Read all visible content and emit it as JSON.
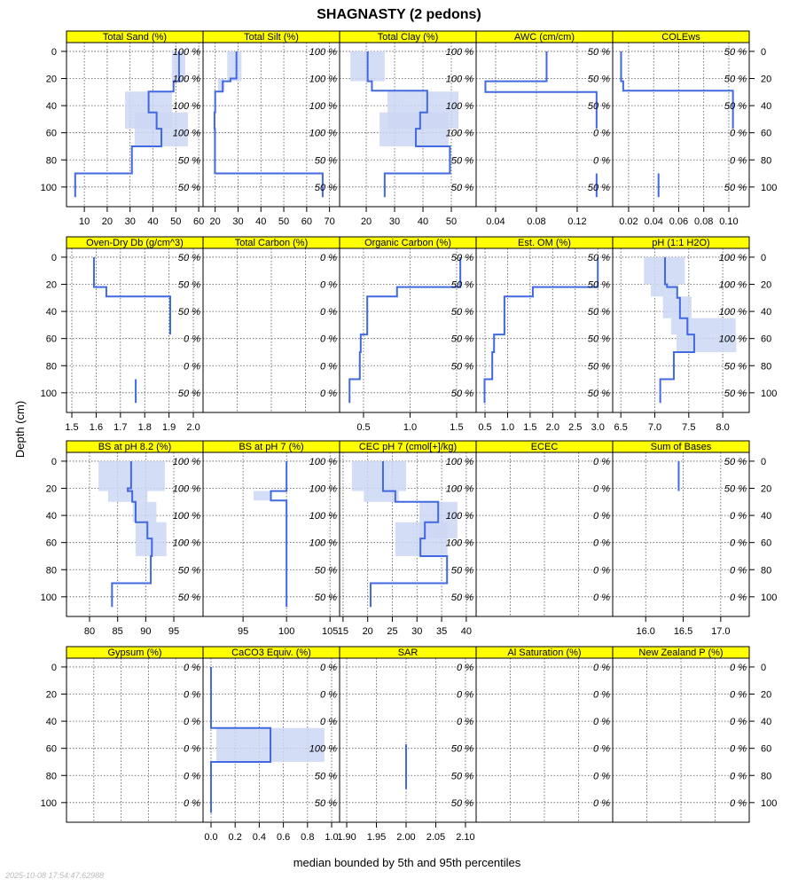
{
  "title": "SHAGNASTY (2 pedons)",
  "xlabel": "median bounded by 5th and 95th percentiles",
  "ylabel": "Depth (cm)",
  "timestamp": "2025-10-08 17:54:47.62988",
  "colors": {
    "strip": "#ffff00",
    "median": "#4169e1",
    "band": "#cdd7f5",
    "grid": "#555555"
  },
  "chart_data": {
    "type": "line",
    "title": "SHAGNASTY (2 pedons)",
    "xlabel": "median bounded by 5th and 95th percentiles",
    "ylabel": "Depth (cm)",
    "ylim": [
      -6.5,
      114.5
    ],
    "depth_ticks": [
      "0",
      "20",
      "40",
      "60",
      "80",
      "100"
    ],
    "depth_tick_values": [
      0,
      20,
      40,
      60,
      80,
      100
    ],
    "panels": [
      {
        "title": "Total Sand (%)",
        "xlim": [
          2.2,
          61.9
        ],
        "ticks": [
          10,
          20,
          30,
          40,
          50,
          60
        ],
        "tick_labels": [
          "10",
          "20",
          "30",
          "40",
          "50",
          "60"
        ],
        "median": [
          [
            0,
            22,
            51.4
          ],
          [
            22,
            29.6,
            49
          ],
          [
            29.6,
            45,
            38.1
          ],
          [
            45,
            57,
            41.6
          ],
          [
            57,
            70,
            43.7
          ],
          [
            70,
            90,
            30.8
          ],
          [
            90,
            107.5,
            6
          ]
        ],
        "bands": [
          [
            0,
            22,
            48.3,
            54.1
          ],
          [
            29.6,
            57,
            27.8,
            48.3
          ],
          [
            45,
            70,
            32,
            55.3
          ]
        ],
        "pct": [
          "100 %",
          "100 %",
          "100 %",
          "100 %",
          "50 %",
          "50 %"
        ]
      },
      {
        "title": "Total Silt (%)",
        "xlim": [
          14.7,
          74.4
        ],
        "ticks": [
          20,
          30,
          40,
          50,
          60,
          70
        ],
        "tick_labels": [
          "20",
          "30",
          "40",
          "50",
          "60",
          "70"
        ],
        "median": [
          [
            0,
            20,
            29.3
          ],
          [
            20,
            22,
            26.7
          ],
          [
            22,
            29.6,
            23.3
          ],
          [
            29.6,
            45,
            20
          ],
          [
            45,
            57,
            19.7
          ],
          [
            57,
            90,
            19.9
          ],
          [
            90,
            107.5,
            67
          ]
        ],
        "bands": [
          [
            0,
            22,
            25.3,
            31.5
          ],
          [
            20,
            29.6,
            21.2,
            24.1
          ]
        ],
        "pct": [
          "100 %",
          "100 %",
          "100 %",
          "100 %",
          "50 %",
          "50 %"
        ]
      },
      {
        "title": "Total Clay (%)",
        "xlim": [
          10.6,
          58.75
        ],
        "ticks": [
          20,
          30,
          40,
          50
        ],
        "tick_labels": [
          "20",
          "30",
          "40",
          "50"
        ],
        "median": [
          [
            0,
            22,
            20.5
          ],
          [
            22,
            29,
            22
          ],
          [
            29,
            45,
            41.5
          ],
          [
            45,
            57,
            39
          ],
          [
            57,
            70,
            37.5
          ],
          [
            70,
            90,
            49.5
          ],
          [
            90,
            107.5,
            26.5
          ]
        ],
        "bands": [
          [
            0,
            22,
            14.4,
            26.5
          ],
          [
            29.6,
            57,
            27.5,
            52.5
          ],
          [
            45,
            70,
            24.7,
            49
          ]
        ],
        "pct": [
          "100 %",
          "100 %",
          "100 %",
          "100 %",
          "50 %",
          "50 %"
        ]
      },
      {
        "title": "AWC (cm/cm)",
        "xlim": [
          0.0209,
          0.1548
        ],
        "ticks": [
          0.04,
          0.08,
          0.12
        ],
        "tick_labels": [
          "0.04",
          "0.08",
          "0.12"
        ],
        "median": [
          [
            0,
            22,
            0.09
          ],
          [
            22,
            30,
            0.03
          ],
          [
            30,
            57,
            0.139
          ],
          [
            90,
            107.5,
            0.139
          ]
        ],
        "bands": [],
        "pct": [
          "50 %",
          "50 %",
          "50 %",
          "0 %",
          "0 %",
          "50 %"
        ]
      },
      {
        "title": "COLEws",
        "xlim": [
          0.0073,
          0.1163
        ],
        "ticks": [
          0.02,
          0.04,
          0.06,
          0.08,
          0.1
        ],
        "tick_labels": [
          "0.02",
          "0.04",
          "0.06",
          "0.08",
          "0.10"
        ],
        "median": [
          [
            0,
            22,
            0.014
          ],
          [
            22,
            29,
            0.0157
          ],
          [
            29,
            57,
            0.1033
          ],
          [
            90,
            107.5,
            0.0439
          ]
        ],
        "bands": [],
        "pct": [
          "50 %",
          "50 %",
          "50 %",
          "0 %",
          "0 %",
          "50 %"
        ]
      },
      {
        "title": "Oven-Dry Db (g/cm^3)",
        "xlim": [
          1.478,
          2.04
        ],
        "ticks": [
          1.5,
          1.6,
          1.7,
          1.8,
          1.9,
          2.0
        ],
        "tick_labels": [
          "1.5",
          "1.6",
          "1.7",
          "1.8",
          "1.9",
          "2.0"
        ],
        "median": [
          [
            0,
            22,
            1.591
          ],
          [
            22,
            29,
            1.642
          ],
          [
            29,
            57,
            1.905
          ],
          [
            90,
            107.5,
            1.763
          ]
        ],
        "bands": [],
        "pct": [
          "50 %",
          "50 %",
          "50 %",
          "0 %",
          "0 %",
          "50 %"
        ]
      },
      {
        "title": "Total Carbon (%)",
        "xlim": [
          0,
          1
        ],
        "ticks": [],
        "tick_labels": [],
        "grid": [
          0.25,
          0.5,
          0.75
        ],
        "median": [],
        "bands": [],
        "pct": [
          "0 %",
          "0 %",
          "0 %",
          "0 %",
          "0 %",
          "0 %"
        ]
      },
      {
        "title": "Organic Carbon (%)",
        "xlim": [
          0.243,
          1.71
        ],
        "ticks": [
          0.5,
          1.0,
          1.5
        ],
        "tick_labels": [
          "0.5",
          "1.0",
          "1.5"
        ],
        "median": [
          [
            0,
            22,
            1.54
          ],
          [
            22,
            29,
            0.86
          ],
          [
            29,
            57,
            0.54
          ],
          [
            57,
            70,
            0.47
          ],
          [
            70,
            90,
            0.46
          ],
          [
            90,
            107.5,
            0.35
          ]
        ],
        "bands": [],
        "pct": [
          "50 %",
          "50 %",
          "50 %",
          "50 %",
          "50 %",
          "50 %"
        ]
      },
      {
        "title": "Est. OM (%)",
        "xlim": [
          0.303,
          3.33
        ],
        "ticks": [
          0.5,
          1.0,
          1.5,
          2.0,
          2.5,
          3.0
        ],
        "tick_labels": [
          "0.5",
          "1.0",
          "1.5",
          "2.0",
          "2.5",
          "3.0"
        ],
        "median": [
          [
            0,
            22,
            3.0
          ],
          [
            22,
            29,
            1.56
          ],
          [
            29,
            57,
            0.93
          ],
          [
            57,
            70,
            0.7
          ],
          [
            70,
            90,
            0.66
          ],
          [
            90,
            107.5,
            0.49
          ]
        ],
        "bands": [],
        "pct": [
          "50 %",
          "50 %",
          "50 %",
          "50 %",
          "50 %",
          "50 %"
        ]
      },
      {
        "title": "pH (1:1 H2O)",
        "xlim": [
          6.38,
          8.39
        ],
        "ticks": [
          6.5,
          7.0,
          7.5,
          8.0
        ],
        "tick_labels": [
          "6.5",
          "7.0",
          "7.5",
          "8.0"
        ],
        "median": [
          [
            0,
            20,
            7.15
          ],
          [
            20,
            22,
            7.18
          ],
          [
            22,
            30,
            7.33
          ],
          [
            30,
            45,
            7.37
          ],
          [
            45,
            57,
            7.48
          ],
          [
            57,
            70,
            7.58
          ],
          [
            70,
            90,
            7.28
          ],
          [
            90,
            107.5,
            7.08
          ]
        ],
        "bands": [
          [
            0,
            20,
            6.84,
            7.44
          ],
          [
            20,
            29,
            6.94,
            7.34
          ],
          [
            29,
            45,
            7.12,
            7.54
          ],
          [
            45,
            57,
            7.24,
            8.19
          ],
          [
            57,
            70,
            7.32,
            8.2
          ]
        ],
        "pct": [
          "100 %",
          "100 %",
          "100 %",
          "100 %",
          "50 %",
          "50 %"
        ]
      },
      {
        "title": "BS at pH 8.2 (%)",
        "xlim": [
          75.9,
          100.2
        ],
        "ticks": [
          80,
          85,
          90,
          95
        ],
        "tick_labels": [
          "80",
          "85",
          "90",
          "95"
        ],
        "median": [
          [
            0,
            20,
            87.4
          ],
          [
            20,
            22,
            86.8
          ],
          [
            22,
            30,
            87.6
          ],
          [
            30,
            45,
            88.2
          ],
          [
            45,
            57,
            90.3
          ],
          [
            57,
            70,
            91.1
          ],
          [
            70,
            90,
            90.9
          ],
          [
            90,
            107.5,
            84
          ]
        ],
        "bands": [
          [
            0,
            22,
            81.6,
            93.4
          ],
          [
            22,
            30,
            83.3,
            90.3
          ],
          [
            30,
            45,
            87.7,
            91.9
          ],
          [
            45,
            70,
            88.2,
            93.7
          ]
        ],
        "pct": [
          "100 %",
          "100 %",
          "100 %",
          "100 %",
          "50 %",
          "50 %"
        ]
      },
      {
        "title": "BS at pH 7 (%)",
        "xlim": [
          90.4,
          106.1
        ],
        "ticks": [
          95,
          100,
          105
        ],
        "tick_labels": [
          "95",
          "100",
          "105"
        ],
        "median": [
          [
            0,
            22,
            100
          ],
          [
            22,
            29,
            98.2
          ],
          [
            29,
            107.5,
            100
          ]
        ],
        "bands": [
          [
            22,
            29,
            96.2,
            98.2
          ]
        ],
        "pct": [
          "100 %",
          "100 %",
          "100 %",
          "100 %",
          "50 %",
          "50 %"
        ]
      },
      {
        "title": "CEC pH 7 (cmol[+]/kg)",
        "xlim": [
          14.3,
          42
        ],
        "ticks": [
          15,
          20,
          25,
          30,
          35,
          40
        ],
        "tick_labels": [
          "15",
          "20",
          "25",
          "30",
          "35",
          "40"
        ],
        "median": [
          [
            0,
            22,
            23.1
          ],
          [
            22,
            30,
            25.6
          ],
          [
            30,
            45,
            34.3
          ],
          [
            45,
            57,
            31.6
          ],
          [
            57,
            70,
            30.7
          ],
          [
            70,
            90,
            36.1
          ],
          [
            90,
            107.5,
            20.6
          ]
        ],
        "bands": [
          [
            0,
            22,
            16.8,
            27.8
          ],
          [
            22,
            30,
            19.2,
            26.3
          ],
          [
            30,
            57,
            30.5,
            38.2
          ],
          [
            45,
            70,
            25.6,
            36.2
          ]
        ],
        "pct": [
          "100 %",
          "100 %",
          "100 %",
          "100 %",
          "50 %",
          "50 %"
        ]
      },
      {
        "title": "ECEC",
        "xlim": [
          0,
          1
        ],
        "ticks": [],
        "tick_labels": [],
        "grid": [
          0.25,
          0.5,
          0.75
        ],
        "median": [],
        "bands": [],
        "pct": [
          "0 %",
          "0 %",
          "0 %",
          "0 %",
          "0 %",
          "0 %"
        ]
      },
      {
        "title": "Sum of Bases",
        "xlim": [
          15.56,
          17.38
        ],
        "ticks": [
          16.0,
          16.5,
          17.0
        ],
        "tick_labels": [
          "16.0",
          "16.5",
          "17.0"
        ],
        "median": [
          [
            0,
            22,
            16.44
          ]
        ],
        "bands": [],
        "pct": [
          "50 %",
          "50 %",
          "0 %",
          "0 %",
          "0 %",
          "0 %"
        ]
      },
      {
        "title": "Gypsum (%)",
        "xlim": [
          0,
          1
        ],
        "ticks": [],
        "tick_labels": [],
        "grid": [
          0.2,
          0.4,
          0.6,
          0.8
        ],
        "median": [],
        "bands": [],
        "pct": [
          "0 %",
          "0 %",
          "0 %",
          "0 %",
          "0 %",
          "0 %"
        ]
      },
      {
        "title": "CaCO3 Equiv. (%)",
        "xlim": [
          -0.066,
          1.066
        ],
        "ticks": [
          0.0,
          0.2,
          0.4,
          0.6,
          0.8,
          1.0
        ],
        "tick_labels": [
          "0.0",
          "0.2",
          "0.4",
          "0.6",
          "0.8",
          "1.0"
        ],
        "median": [
          [
            0,
            45,
            0
          ],
          [
            45,
            70,
            0.493
          ],
          [
            70,
            107.5,
            0
          ]
        ],
        "bands": [
          [
            45,
            70,
            0.044,
            0.94
          ]
        ],
        "pct": [
          "0 %",
          "0 %",
          "0 %",
          "100 %",
          "50 %",
          "50 %"
        ]
      },
      {
        "title": "SAR",
        "xlim": [
          1.888,
          2.118
        ],
        "ticks": [
          1.9,
          1.95,
          2.0,
          2.05,
          2.1
        ],
        "tick_labels": [
          "1.90",
          "1.95",
          "2.00",
          "2.05",
          "2.10"
        ],
        "median": [
          [
            57,
            90,
            2.0
          ]
        ],
        "bands": [],
        "pct": [
          "0 %",
          "0 %",
          "0 %",
          "50 %",
          "50 %",
          "50 %"
        ]
      },
      {
        "title": "Al Saturation (%)",
        "xlim": [
          0,
          1
        ],
        "ticks": [],
        "tick_labels": [],
        "grid": [
          0.25,
          0.5,
          0.75
        ],
        "median": [],
        "bands": [],
        "pct": [
          "0 %",
          "0 %",
          "0 %",
          "0 %",
          "0 %",
          "0 %"
        ]
      },
      {
        "title": "New Zealand P (%)",
        "xlim": [
          0,
          1
        ],
        "ticks": [],
        "tick_labels": [],
        "grid": [
          0.25,
          0.5,
          0.75
        ],
        "median": [],
        "bands": [],
        "pct": [
          "0 %",
          "0 %",
          "0 %",
          "0 %",
          "0 %",
          "0 %"
        ]
      }
    ]
  }
}
